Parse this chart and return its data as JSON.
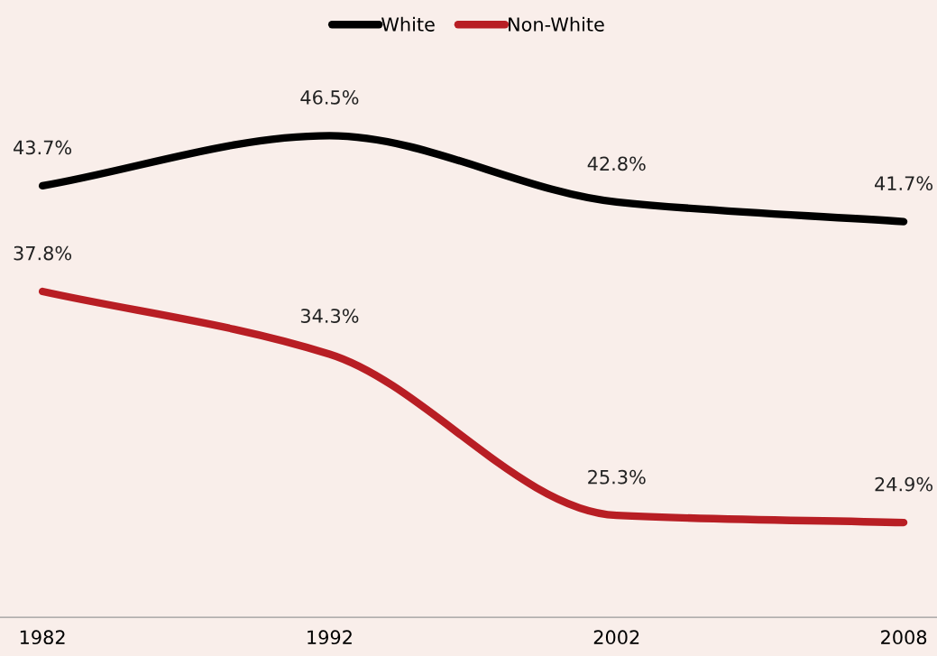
{
  "chart_data": {
    "type": "line",
    "categories": [
      "1982",
      "1992",
      "2002",
      "2008"
    ],
    "series": [
      {
        "name": "White",
        "color": "#000000",
        "values": [
          43.7,
          46.5,
          42.8,
          41.7
        ],
        "value_labels": [
          "43.7%",
          "46.5%",
          "42.8%",
          "41.7%"
        ]
      },
      {
        "name": "Non-White",
        "color": "#b81e24",
        "values": [
          37.8,
          34.3,
          25.3,
          24.9
        ],
        "value_labels": [
          "37.8%",
          "34.3%",
          "25.3%",
          "24.9%"
        ]
      }
    ],
    "legend": "top",
    "marker": "none",
    "line_style": "solid"
  }
}
